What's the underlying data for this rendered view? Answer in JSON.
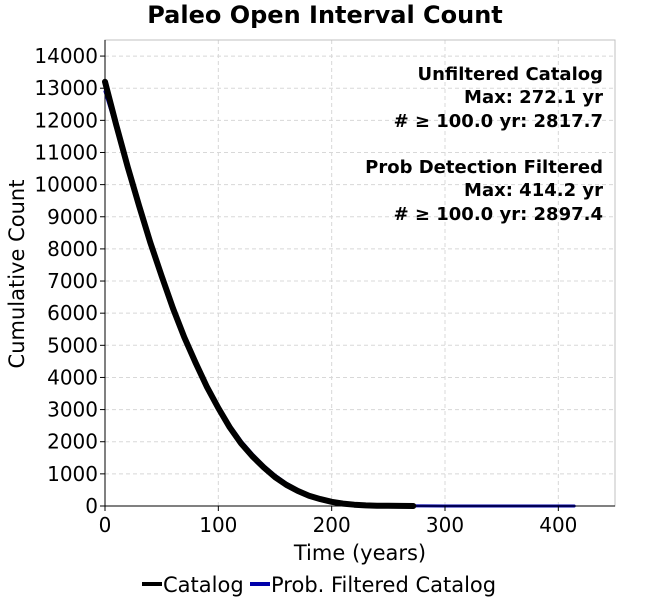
{
  "chart_data": {
    "type": "line",
    "title": "Paleo Open Interval Count",
    "xlabel": "Time (years)",
    "ylabel": "Cumulative Count",
    "xlim": [
      0,
      450
    ],
    "ylim": [
      0,
      14500
    ],
    "xticks": [
      0,
      100,
      200,
      300,
      400
    ],
    "yticks": [
      0,
      1000,
      2000,
      3000,
      4000,
      5000,
      6000,
      7000,
      8000,
      9000,
      10000,
      11000,
      12000,
      13000,
      14000
    ],
    "grid": true,
    "legend_placement": "bottom",
    "series": [
      {
        "name": "Catalog",
        "color": "#000000",
        "x": [
          0,
          10,
          20,
          30,
          40,
          50,
          60,
          70,
          80,
          90,
          100,
          110,
          120,
          130,
          140,
          150,
          160,
          170,
          180,
          190,
          200,
          210,
          220,
          230,
          240,
          250,
          260,
          272
        ],
        "y": [
          13200,
          11850,
          10550,
          9350,
          8200,
          7150,
          6150,
          5250,
          4450,
          3700,
          3050,
          2450,
          1950,
          1550,
          1200,
          900,
          660,
          470,
          320,
          215,
          130,
          75,
          40,
          20,
          10,
          5,
          2,
          0
        ]
      },
      {
        "name": "Prob. Filtered Catalog",
        "color": "#0000aa",
        "x": [
          0,
          10,
          20,
          30,
          40,
          50,
          60,
          70,
          80,
          90,
          100,
          110,
          120,
          130,
          140,
          150,
          160,
          170,
          180,
          190,
          200,
          210,
          220,
          230,
          240,
          250,
          260,
          280,
          300,
          350,
          400,
          414
        ],
        "y": [
          12900,
          11750,
          10500,
          9300,
          8200,
          7150,
          6200,
          5300,
          4500,
          3750,
          3100,
          2520,
          2030,
          1620,
          1260,
          960,
          710,
          510,
          350,
          240,
          150,
          90,
          50,
          28,
          15,
          8,
          4,
          2,
          1,
          0,
          0,
          0
        ]
      }
    ],
    "annotations": {
      "block1": {
        "heading": "Unfiltered Catalog",
        "max": "Max: 272.1 yr",
        "count": "# ≥ 100.0 yr: 2817.7"
      },
      "block2": {
        "heading": "Prob Detection Filtered",
        "max": "Max: 414.2 yr",
        "count": "# ≥ 100.0 yr: 2897.4"
      }
    }
  }
}
